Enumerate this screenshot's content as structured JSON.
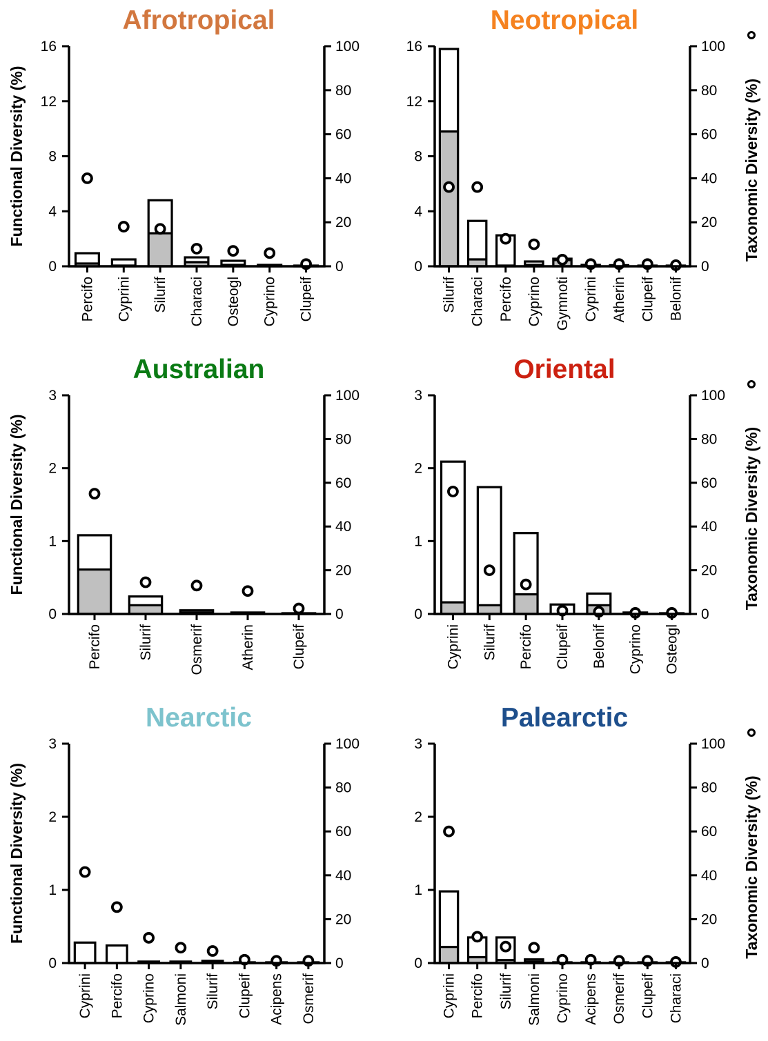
{
  "figure": {
    "left_axis_label": "Functional Diversity (%)",
    "right_axis_label": "Taxonomic Diversity (%)"
  },
  "chart_data": [
    {
      "type": "bar",
      "title": "Afrotropical",
      "title_color": "#d2773f",
      "ylabel": "Functional Diversity (%)",
      "ylabel_right": "Taxonomic Diversity (%)",
      "ylim": [
        0,
        16
      ],
      "yticks": [
        0,
        4,
        8,
        12,
        16
      ],
      "ylim_right": [
        0,
        100
      ],
      "yticks_right": [
        0,
        20,
        40,
        60,
        80,
        100
      ],
      "categories": [
        "Percifo",
        "Cyprini",
        "Silurif",
        "Characi",
        "Osteogl",
        "Cyprino",
        "Clupeif"
      ],
      "series": [
        {
          "values": [
            0.95,
            0.5,
            4.8,
            0.65,
            0.4,
            0.1,
            0.05
          ]
        },
        {
          "values": [
            0.2,
            0.05,
            2.4,
            0.3,
            0.1,
            0.0,
            0.0
          ]
        },
        {
          "values": [
            40,
            18,
            17,
            8,
            7,
            6,
            1
          ]
        }
      ]
    },
    {
      "type": "bar",
      "title": "Neotropical",
      "title_color": "#f58220",
      "ylabel": "Functional Diversity (%)",
      "ylabel_right": "Taxonomic Diversity (%)",
      "ylim": [
        0,
        16
      ],
      "yticks": [
        0,
        4,
        8,
        12,
        16
      ],
      "ylim_right": [
        0,
        100
      ],
      "yticks_right": [
        0,
        20,
        40,
        60,
        80,
        100
      ],
      "categories": [
        "Silurif",
        "Characi",
        "Percifo",
        "Cyprino",
        "Gymnoti",
        "Cyprini",
        "Atherin",
        "Clupeif",
        "Belonif"
      ],
      "series": [
        {
          "values": [
            15.8,
            3.3,
            2.25,
            0.35,
            0.55,
            0.1,
            0.08,
            0.05,
            0.05
          ]
        },
        {
          "values": [
            9.8,
            0.5,
            0.05,
            0.1,
            0.45,
            0.0,
            0.0,
            0.0,
            0.0
          ]
        },
        {
          "values": [
            36,
            36,
            12.5,
            10,
            3,
            1,
            1,
            1,
            0.5
          ]
        }
      ]
    },
    {
      "type": "bar",
      "title": "Australian",
      "title_color": "#0a7a14",
      "ylabel": "Functional Diversity (%)",
      "ylabel_right": "Taxonomic Diversity (%)",
      "ylim": [
        0,
        3
      ],
      "yticks": [
        0,
        1,
        2,
        3
      ],
      "ylim_right": [
        0,
        100
      ],
      "yticks_right": [
        0,
        20,
        40,
        60,
        80,
        100
      ],
      "categories": [
        "Percifo",
        "Silurif",
        "Osmerif",
        "Atherin",
        "Clupeif"
      ],
      "series": [
        {
          "values": [
            1.08,
            0.24,
            0.05,
            0.02,
            0.01
          ]
        },
        {
          "values": [
            0.61,
            0.12,
            0.02,
            0.0,
            0.0
          ]
        },
        {
          "values": [
            55,
            14.5,
            13,
            10.5,
            2.5
          ]
        }
      ]
    },
    {
      "type": "bar",
      "title": "Oriental",
      "title_color": "#cc2111",
      "ylabel": "Functional Diversity (%)",
      "ylabel_right": "Taxonomic Diversity (%)",
      "ylim": [
        0,
        3
      ],
      "yticks": [
        0,
        1,
        2,
        3
      ],
      "ylim_right": [
        0,
        100
      ],
      "yticks_right": [
        0,
        20,
        40,
        60,
        80,
        100
      ],
      "categories": [
        "Cyprini",
        "Silurif",
        "Percifo",
        "Clupeif",
        "Belonif",
        "Cyprino",
        "Osteogl"
      ],
      "series": [
        {
          "values": [
            2.09,
            1.74,
            1.11,
            0.13,
            0.28,
            0.02,
            0.01
          ]
        },
        {
          "values": [
            0.16,
            0.12,
            0.27,
            0.0,
            0.12,
            0.0,
            0.0
          ]
        },
        {
          "values": [
            56,
            20,
            13.5,
            1.5,
            1,
            0.5,
            0.5
          ]
        }
      ]
    },
    {
      "type": "bar",
      "title": "Nearctic",
      "title_color": "#7dc3cd",
      "ylabel": "Functional Diversity (%)",
      "ylabel_right": "Taxonomic Diversity (%)",
      "ylim": [
        0,
        3
      ],
      "yticks": [
        0,
        1,
        2,
        3
      ],
      "ylim_right": [
        0,
        100
      ],
      "yticks_right": [
        0,
        20,
        40,
        60,
        80,
        100
      ],
      "categories": [
        "Cyprini",
        "Percifo",
        "Cyprino",
        "Salmoni",
        "Silurif",
        "Clupeif",
        "Acipens",
        "Osmerif"
      ],
      "series": [
        {
          "values": [
            0.28,
            0.24,
            0.02,
            0.02,
            0.03,
            0.01,
            0.01,
            0.01
          ]
        },
        {
          "values": [
            0.0,
            0.0,
            0.0,
            0.0,
            0.01,
            0.0,
            0.0,
            0.0
          ]
        },
        {
          "values": [
            41.5,
            25.5,
            11.5,
            7,
            5.5,
            1.5,
            1,
            1
          ]
        }
      ]
    },
    {
      "type": "bar",
      "title": "Palearctic",
      "title_color": "#1e4f8c",
      "ylabel": "Functional Diversity (%)",
      "ylabel_right": "Taxonomic Diversity (%)",
      "ylim": [
        0,
        3
      ],
      "yticks": [
        0,
        1,
        2,
        3
      ],
      "ylim_right": [
        0,
        100
      ],
      "yticks_right": [
        0,
        20,
        40,
        60,
        80,
        100
      ],
      "categories": [
        "Cyprini",
        "Percifo",
        "Silurif",
        "Salmoni",
        "Cyprino",
        "Acipens",
        "Osmerif",
        "Clupeif",
        "Characi"
      ],
      "series": [
        {
          "values": [
            0.98,
            0.35,
            0.35,
            0.05,
            0.01,
            0.01,
            0.01,
            0.01,
            0.01
          ]
        },
        {
          "values": [
            0.22,
            0.08,
            0.04,
            0.02,
            0.0,
            0.0,
            0.0,
            0.0,
            0.0
          ]
        },
        {
          "values": [
            60,
            12,
            7.5,
            7,
            1.5,
            1.5,
            1,
            1,
            0.5
          ]
        }
      ]
    }
  ]
}
